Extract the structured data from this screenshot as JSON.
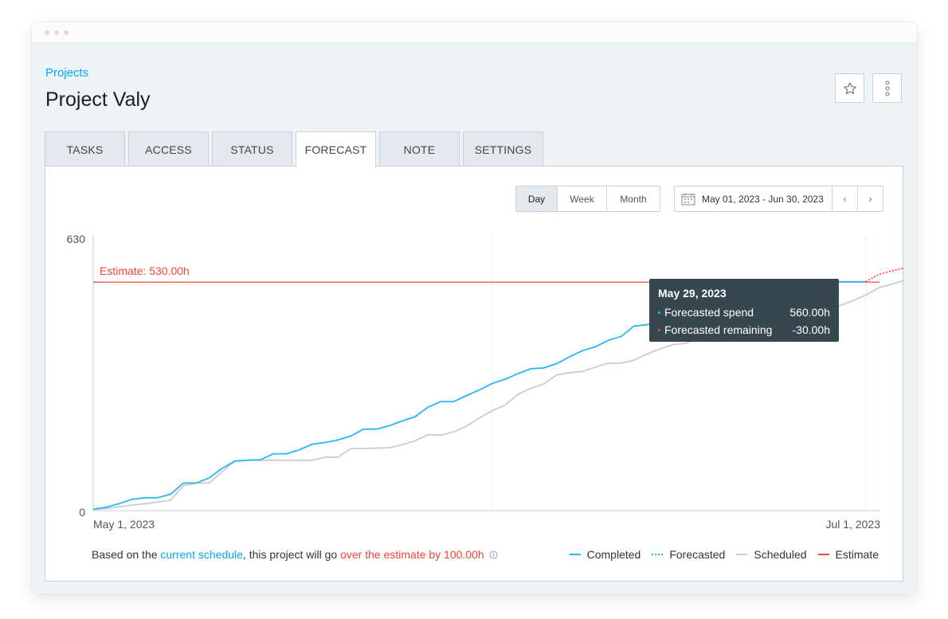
{
  "breadcrumb": "Projects",
  "title": "Project Valy",
  "tabs": [
    "TASKS",
    "ACCESS",
    "STATUS",
    "FORECAST",
    "NOTE",
    "SETTINGS"
  ],
  "active_tab": "FORECAST",
  "granularity": {
    "options": [
      "Day",
      "Week",
      "Month"
    ],
    "selected": "Day"
  },
  "date_range": {
    "label": "May 01, 2023 - Jun 30, 2023",
    "prev": "‹",
    "next": "›"
  },
  "icons": {
    "star": "star-icon",
    "more": "more-vertical-icon",
    "calendar": "calendar-icon",
    "info": "info-icon"
  },
  "colors": {
    "completed": "#29b6f6",
    "forecasted": "#29b6f6",
    "scheduled": "#cccccc",
    "estimate": "#f44336",
    "link": "#03a9f4",
    "tooltip_bg": "#37474f"
  },
  "footnote": {
    "prefix": "Based on the ",
    "link": "current schedule",
    "middle": ", this project will go ",
    "warning": "over the estimate by 100.00h"
  },
  "tooltip": {
    "date": "May 29, 2023",
    "rows": [
      {
        "label": "Forecasted spend",
        "value": "560.00h",
        "color": "#29b6f6"
      },
      {
        "label": "Forecasted remaining",
        "value": "-30.00h",
        "color": "#f44336"
      }
    ]
  },
  "chart_data": {
    "type": "line",
    "x_start_label": "May 1, 2023",
    "x_end_label": "Jul 1, 2023",
    "x_range": [
      "2023-05-01",
      "2023-07-01"
    ],
    "ylim": [
      0,
      630
    ],
    "y_ticks": [
      "0",
      "630"
    ],
    "estimate": {
      "value": 530,
      "label": "Estimate: 530.00h"
    },
    "legend": [
      "Completed",
      "Forecasted",
      "Scheduled",
      "Estimate"
    ],
    "series": [
      {
        "name": "Completed",
        "style": "solid",
        "x": [
          "2023-05-01",
          "2023-05-02",
          "2023-05-03",
          "2023-05-04",
          "2023-05-05",
          "2023-05-06",
          "2023-05-07",
          "2023-05-08",
          "2023-05-09",
          "2023-05-10",
          "2023-05-11",
          "2023-05-12",
          "2023-05-13",
          "2023-05-14",
          "2023-05-15",
          "2023-05-16",
          "2023-05-17",
          "2023-05-18",
          "2023-05-19",
          "2023-05-20",
          "2023-05-21",
          "2023-05-22",
          "2023-05-23",
          "2023-05-24",
          "2023-05-25",
          "2023-05-26",
          "2023-05-27",
          "2023-05-28",
          "2023-05-29",
          "2023-05-30",
          "2023-05-31",
          "2023-06-01",
          "2023-06-02",
          "2023-06-03",
          "2023-06-04",
          "2023-06-05",
          "2023-06-06",
          "2023-06-07",
          "2023-06-08",
          "2023-06-09",
          "2023-06-10",
          "2023-06-11",
          "2023-06-12",
          "2023-06-13",
          "2023-06-14",
          "2023-06-15",
          "2023-06-16",
          "2023-06-17",
          "2023-06-18",
          "2023-06-19",
          "2023-06-20",
          "2023-06-21",
          "2023-06-22",
          "2023-06-23",
          "2023-06-24",
          "2023-06-25",
          "2023-06-26",
          "2023-06-27",
          "2023-06-28",
          "2023-06-29",
          "2023-06-30"
        ],
        "y": [
          3,
          8,
          16,
          26,
          30,
          30,
          38,
          64,
          64,
          76,
          98,
          115,
          117,
          118,
          132,
          132,
          141,
          154,
          158,
          164,
          173,
          189,
          189,
          197,
          208,
          218,
          240,
          253,
          253,
          267,
          280,
          295,
          305,
          318,
          329,
          331,
          341,
          357,
          371,
          380,
          395,
          404,
          428,
          431,
          441,
          447,
          452,
          458,
          460,
          480,
          490,
          500,
          512,
          520,
          528,
          531,
          531,
          531,
          531,
          531,
          531
        ]
      },
      {
        "name": "Forecasted",
        "style": "dotted",
        "x": [
          "2023-06-30",
          "2023-07-01",
          "2023-07-02",
          "2023-07-03",
          "2023-07-04"
        ],
        "y": [
          531,
          548,
          556,
          563,
          590
        ]
      },
      {
        "name": "Scheduled",
        "style": "solid",
        "x": [
          "2023-05-01",
          "2023-05-02",
          "2023-05-03",
          "2023-05-04",
          "2023-05-05",
          "2023-05-06",
          "2023-05-07",
          "2023-05-08",
          "2023-05-09",
          "2023-05-10",
          "2023-05-11",
          "2023-05-12",
          "2023-05-13",
          "2023-05-14",
          "2023-05-15",
          "2023-05-16",
          "2023-05-17",
          "2023-05-18",
          "2023-05-19",
          "2023-05-20",
          "2023-05-21",
          "2023-05-22",
          "2023-05-23",
          "2023-05-24",
          "2023-05-25",
          "2023-05-26",
          "2023-05-27",
          "2023-05-28",
          "2023-05-29",
          "2023-05-30",
          "2023-05-31",
          "2023-06-01",
          "2023-06-02",
          "2023-06-03",
          "2023-06-04",
          "2023-06-05",
          "2023-06-06",
          "2023-06-07",
          "2023-06-08",
          "2023-06-09",
          "2023-06-10",
          "2023-06-11",
          "2023-06-12",
          "2023-06-13",
          "2023-06-14",
          "2023-06-15",
          "2023-06-16",
          "2023-06-17",
          "2023-06-18",
          "2023-06-19",
          "2023-06-20",
          "2023-06-21",
          "2023-06-22",
          "2023-06-23",
          "2023-06-24",
          "2023-06-25",
          "2023-06-26",
          "2023-06-27",
          "2023-06-28",
          "2023-06-29",
          "2023-06-30",
          "2023-07-01",
          "2023-07-02",
          "2023-07-03",
          "2023-07-04"
        ],
        "y": [
          3,
          5,
          9,
          13,
          16,
          20,
          24,
          58,
          64,
          64,
          90,
          115,
          117,
          117,
          117,
          117,
          117,
          117,
          124,
          124,
          144,
          144,
          145,
          146,
          153,
          162,
          176,
          175,
          183,
          196,
          215,
          232,
          245,
          270,
          284,
          294,
          315,
          320,
          323,
          333,
          342,
          342,
          349,
          363,
          375,
          385,
          388,
          399,
          411,
          415,
          419,
          425,
          426,
          430,
          436,
          437,
          438,
          448,
          476,
          487,
          500,
          517,
          525,
          534,
          538
        ]
      }
    ]
  }
}
